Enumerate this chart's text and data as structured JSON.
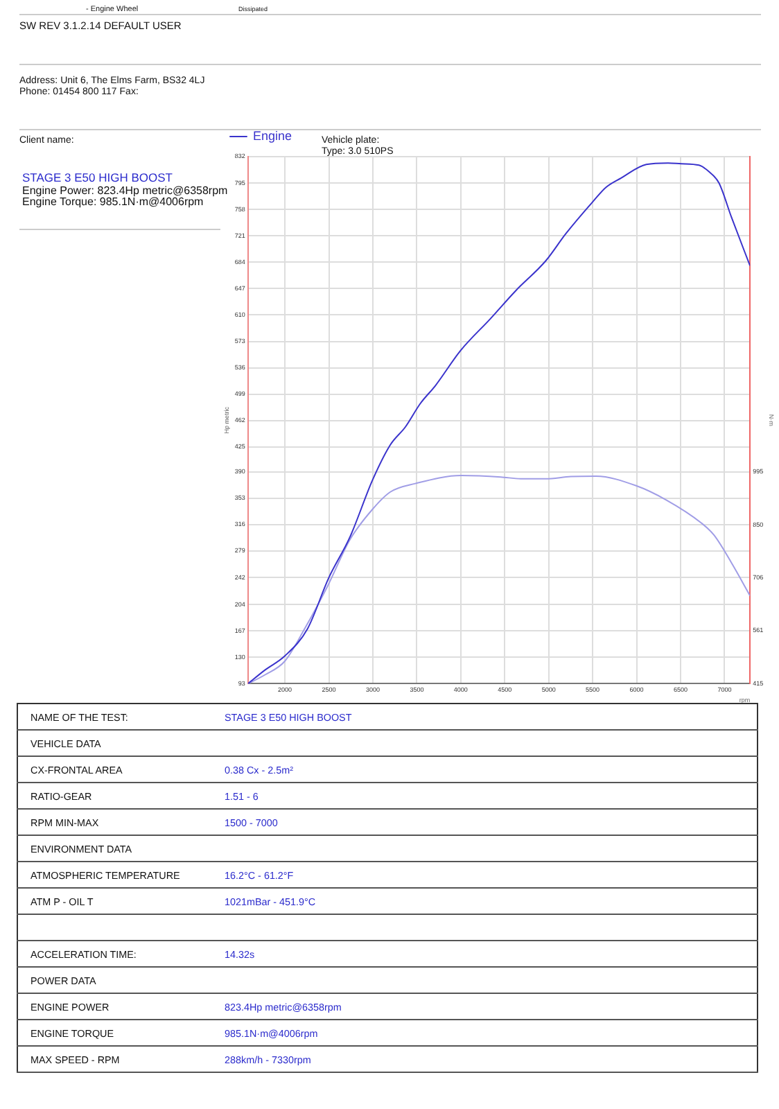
{
  "chart_data": {
    "type": "line",
    "title": "STAGE 3 E50 HIGH BOOST",
    "xlabel": "rpm",
    "ylabel": "Hp metric",
    "y2label": "N·m",
    "legend": "top left",
    "grid": true,
    "xlim": [
      1580,
      7290
    ],
    "xticks": [
      2000,
      2500,
      3000,
      3500,
      4000,
      4500,
      5000,
      5500,
      6000,
      6500,
      7000
    ],
    "ylim": [
      93,
      832
    ],
    "yticks": [
      93,
      130,
      167,
      204,
      242,
      279,
      316,
      353,
      390,
      425,
      462,
      499,
      536,
      573,
      610,
      647,
      684,
      721,
      758,
      795,
      832
    ],
    "y2lim": [
      415,
      1858
    ],
    "y2ticks": [
      415,
      561,
      706,
      850,
      995
    ],
    "series": [
      {
        "name": "Engine",
        "color": "#3a33cc",
        "x": [
          1580,
          1771,
          2000,
          2257,
          2497,
          2741,
          2998,
          3199,
          3370,
          3541,
          3712,
          3997,
          4339,
          4625,
          4967,
          5195,
          5510,
          5652,
          5824,
          6110,
          6358,
          6509,
          6709,
          6822,
          6937,
          7079,
          7290
        ],
        "values": [
          93,
          112,
          132,
          170,
          241,
          299,
          379,
          428,
          453,
          486,
          511,
          560,
          605,
          644,
          686,
          724,
          770,
          789,
          802,
          821,
          823,
          822,
          820,
          811,
          795,
          747,
          679
        ]
      },
      {
        "color": "#a09de6",
        "axis": "y2",
        "x": [
          1580,
          1771,
          2000,
          2228,
          2485,
          2741,
          2998,
          3199,
          3483,
          4006,
          4454,
          4682,
          4967,
          5253,
          5538,
          5995,
          6337,
          6736,
          6880,
          7079,
          7290
        ],
        "values": [
          415,
          439,
          477,
          567,
          682,
          810,
          893,
          940,
          963,
          985,
          981,
          976,
          976,
          982,
          983,
          957,
          918,
          855,
          822,
          746,
          656
        ]
      }
    ],
    "annotations": [
      "- Engine Wheel",
      "Dissipated",
      "SW REV 3.1.2.14   DEFAULT USER",
      "Address: Unit 6, The Elms Farm, BS32 4LJ",
      "Phone: 01454 800 117 Fax:",
      "Client name:",
      "Vehicle plate:",
      "Type: 3.0 510PS",
      "Engine Power: 823.4Hp metric@6358rpm",
      "Engine Torque: 985.1N·m@4006rpm",
      "NAME OF THE TEST:",
      "STAGE 3 E50 HIGH BOOST",
      "VEHICLE DATA",
      "CX-FRONTAL AREA",
      "0.38 Cx - 2.5m²",
      "RATIO-GEAR",
      "1.51 - 6",
      "RPM MIN-MAX",
      "1500 - 7000",
      "ENVIRONMENT DATA",
      "ATMOSPHERIC TEMPERATURE",
      "16.2°C - 61.2°F",
      "ATM P - OIL T",
      "1021mBar - 451.9°C",
      "ACCELERATION TIME:",
      "14.32s",
      "POWER DATA",
      "ENGINE POWER",
      "823.4Hp metric@6358rpm",
      "ENGINE TORQUE",
      "985.1N·m@4006rpm",
      "MAX SPEED - RPM",
      "288km/h - 7330rpm"
    ]
  }
}
